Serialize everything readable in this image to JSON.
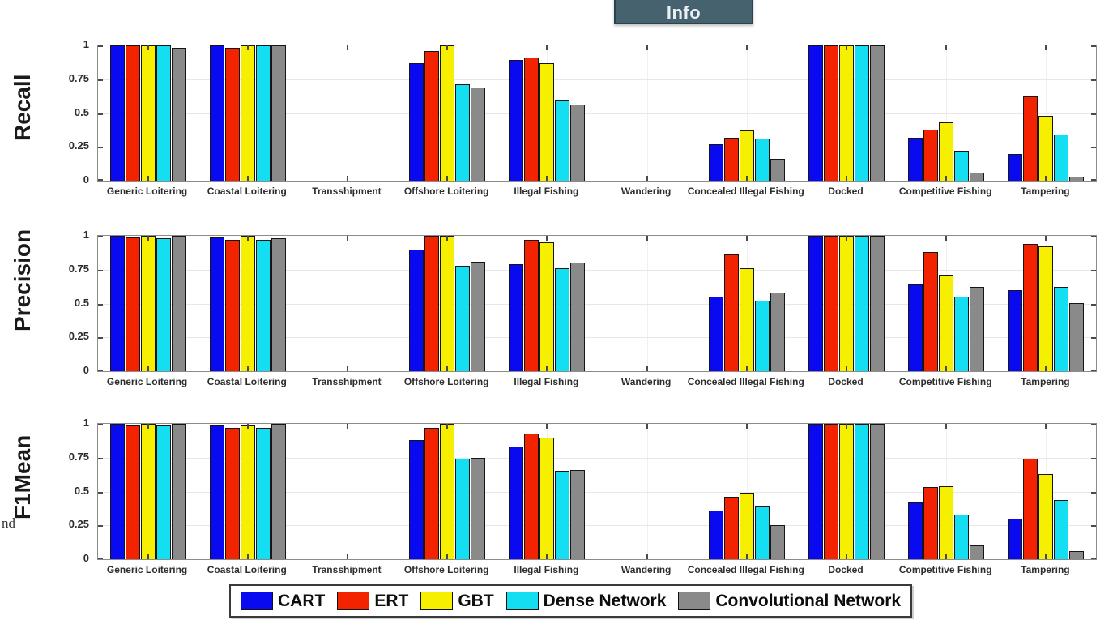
{
  "info_button": {
    "label": "Info"
  },
  "page_fragment": {
    "text": "nd"
  },
  "chart_data": {
    "type": "bar",
    "categories": [
      "Generic Loitering",
      "Coastal Loitering",
      "Transshipment",
      "Offshore Loitering",
      "Illegal Fishing",
      "Wandering",
      "Concealed Illegal Fishing",
      "Docked",
      "Competitive Fishing",
      "Tampering"
    ],
    "series_names": [
      "CART",
      "ERT",
      "GBT",
      "Dense Network",
      "Convolutional Network"
    ],
    "series_colors": [
      "#0a0af0",
      "#f32300",
      "#f7ef00",
      "#14dff2",
      "#8a8a8a"
    ],
    "ylim": [
      0,
      1
    ],
    "yticks": [
      0,
      0.25,
      0.5,
      0.75,
      1
    ],
    "ytick_labels": [
      "0",
      "0.25",
      "0.5",
      "0.75",
      "1"
    ],
    "grid": true,
    "legend_position": "bottom",
    "panels": [
      {
        "ylabel": "Recall",
        "series": [
          {
            "name": "CART",
            "values": [
              1.0,
              1.0,
              0,
              0.87,
              0.89,
              0,
              0.27,
              1.0,
              0.32,
              0.2
            ]
          },
          {
            "name": "ERT",
            "values": [
              1.0,
              0.98,
              0,
              0.96,
              0.91,
              0,
              0.32,
              1.0,
              0.38,
              0.62
            ]
          },
          {
            "name": "GBT",
            "values": [
              1.0,
              1.0,
              0,
              1.0,
              0.87,
              0,
              0.37,
              1.0,
              0.43,
              0.48
            ]
          },
          {
            "name": "Dense Network",
            "values": [
              1.0,
              1.0,
              0,
              0.71,
              0.59,
              0,
              0.31,
              1.0,
              0.22,
              0.34
            ]
          },
          {
            "name": "Convolutional Network",
            "values": [
              0.98,
              1.0,
              0,
              0.69,
              0.56,
              0,
              0.16,
              1.0,
              0.06,
              0.03
            ]
          }
        ]
      },
      {
        "ylabel": "Precision",
        "series": [
          {
            "name": "CART",
            "values": [
              1.0,
              0.99,
              0,
              0.9,
              0.79,
              0,
              0.55,
              1.0,
              0.64,
              0.6
            ]
          },
          {
            "name": "ERT",
            "values": [
              0.99,
              0.97,
              0,
              1.0,
              0.97,
              0,
              0.86,
              1.0,
              0.88,
              0.94
            ]
          },
          {
            "name": "GBT",
            "values": [
              1.0,
              1.0,
              0,
              1.0,
              0.95,
              0,
              0.76,
              1.0,
              0.71,
              0.92
            ]
          },
          {
            "name": "Dense Network",
            "values": [
              0.98,
              0.97,
              0,
              0.78,
              0.76,
              0,
              0.52,
              1.0,
              0.55,
              0.62
            ]
          },
          {
            "name": "Convolutional Network",
            "values": [
              1.0,
              0.98,
              0,
              0.81,
              0.8,
              0,
              0.58,
              1.0,
              0.62,
              0.5
            ]
          }
        ]
      },
      {
        "ylabel": "F1Mean",
        "series": [
          {
            "name": "CART",
            "values": [
              1.0,
              0.99,
              0,
              0.88,
              0.83,
              0,
              0.36,
              1.0,
              0.42,
              0.3
            ]
          },
          {
            "name": "ERT",
            "values": [
              0.99,
              0.97,
              0,
              0.97,
              0.93,
              0,
              0.46,
              1.0,
              0.53,
              0.74
            ]
          },
          {
            "name": "GBT",
            "values": [
              1.0,
              0.99,
              0,
              1.0,
              0.9,
              0,
              0.49,
              1.0,
              0.54,
              0.63
            ]
          },
          {
            "name": "Dense Network",
            "values": [
              0.99,
              0.97,
              0,
              0.74,
              0.65,
              0,
              0.39,
              1.0,
              0.33,
              0.44
            ]
          },
          {
            "name": "Convolutional Network",
            "values": [
              1.0,
              1.0,
              0,
              0.75,
              0.66,
              0,
              0.25,
              1.0,
              0.1,
              0.06
            ]
          }
        ]
      }
    ],
    "legend_entries": [
      {
        "label": "CART",
        "color": "#0a0af0"
      },
      {
        "label": "ERT",
        "color": "#f32300"
      },
      {
        "label": "GBT",
        "color": "#f7ef00"
      },
      {
        "label": "Dense Network",
        "color": "#14dff2"
      },
      {
        "label": "Convolutional Network",
        "color": "#8a8a8a"
      }
    ]
  }
}
